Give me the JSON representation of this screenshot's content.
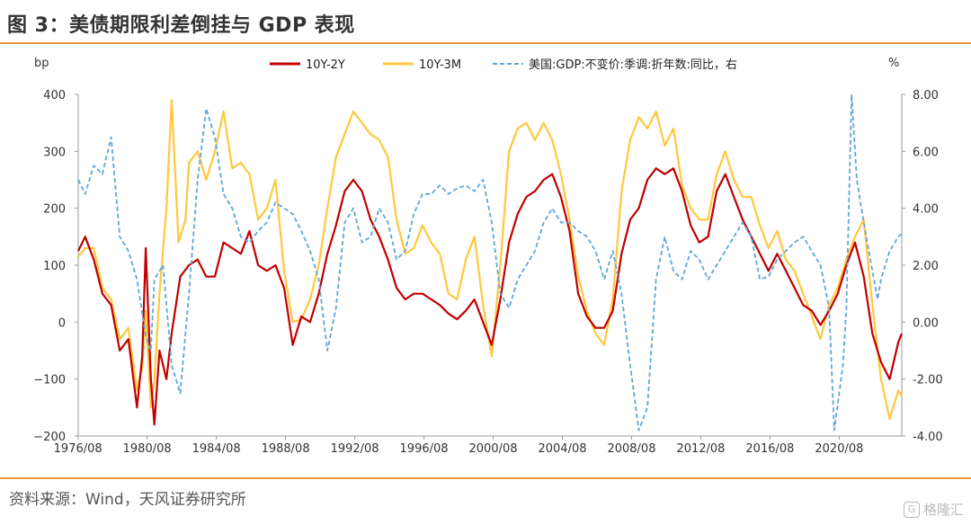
{
  "figure": {
    "title": "图 3：美债期限利差倒挂与 GDP 表现",
    "source": "资料来源：Wind，天风证券研究所",
    "watermark": "格隆汇"
  },
  "colors": {
    "accent_rule": "#e8963a",
    "series_10y2y": "#c00000",
    "series_10y3m": "#ffc83d",
    "series_gdp": "#5ea7d8"
  },
  "chart_data": {
    "type": "line",
    "left_unit": "bp",
    "right_unit": "%",
    "left_ylim": [
      -200,
      400
    ],
    "right_ylim": [
      -4,
      8
    ],
    "left_ticks": [
      "400",
      "300",
      "200",
      "100",
      "0",
      "−100",
      "−200"
    ],
    "right_ticks": [
      "8.00",
      "6.00",
      "4.00",
      "2.00",
      "0.00",
      "-2.00",
      "-4.00"
    ],
    "x_ticks": [
      "1976/08",
      "1980/08",
      "1984/08",
      "1988/08",
      "1992/08",
      "1996/08",
      "2000/08",
      "2004/08",
      "2008/08",
      "2012/08",
      "2016/08",
      "2020/08"
    ],
    "x_range": [
      1976.6,
      2024.2
    ],
    "grid": false,
    "legend_position": "top",
    "series": [
      {
        "name": "10Y-2Y",
        "axis": "left",
        "style": "solid",
        "points": [
          [
            1976.6,
            125
          ],
          [
            1977.0,
            150
          ],
          [
            1977.5,
            110
          ],
          [
            1978.0,
            50
          ],
          [
            1978.5,
            30
          ],
          [
            1979.0,
            -50
          ],
          [
            1979.5,
            -30
          ],
          [
            1980.0,
            -150
          ],
          [
            1980.3,
            -60
          ],
          [
            1980.5,
            130
          ],
          [
            1980.8,
            -100
          ],
          [
            1981.0,
            -180
          ],
          [
            1981.3,
            -50
          ],
          [
            1981.7,
            -100
          ],
          [
            1982.0,
            -20
          ],
          [
            1982.5,
            80
          ],
          [
            1983.0,
            100
          ],
          [
            1983.5,
            110
          ],
          [
            1984.0,
            80
          ],
          [
            1984.5,
            80
          ],
          [
            1985.0,
            140
          ],
          [
            1985.5,
            130
          ],
          [
            1986.0,
            120
          ],
          [
            1986.5,
            160
          ],
          [
            1987.0,
            100
          ],
          [
            1987.5,
            90
          ],
          [
            1988.0,
            100
          ],
          [
            1988.5,
            60
          ],
          [
            1989.0,
            -40
          ],
          [
            1989.5,
            10
          ],
          [
            1990.0,
            0
          ],
          [
            1990.5,
            50
          ],
          [
            1991.0,
            120
          ],
          [
            1991.5,
            170
          ],
          [
            1992.0,
            230
          ],
          [
            1992.5,
            250
          ],
          [
            1993.0,
            230
          ],
          [
            1993.5,
            180
          ],
          [
            1994.0,
            150
          ],
          [
            1994.5,
            110
          ],
          [
            1995.0,
            60
          ],
          [
            1995.5,
            40
          ],
          [
            1996.0,
            50
          ],
          [
            1996.5,
            50
          ],
          [
            1997.0,
            40
          ],
          [
            1997.5,
            30
          ],
          [
            1998.0,
            15
          ],
          [
            1998.5,
            5
          ],
          [
            1999.0,
            20
          ],
          [
            1999.5,
            40
          ],
          [
            2000.0,
            0
          ],
          [
            2000.5,
            -40
          ],
          [
            2001.0,
            40
          ],
          [
            2001.5,
            140
          ],
          [
            2002.0,
            190
          ],
          [
            2002.5,
            220
          ],
          [
            2003.0,
            230
          ],
          [
            2003.5,
            250
          ],
          [
            2004.0,
            260
          ],
          [
            2004.5,
            220
          ],
          [
            2005.0,
            160
          ],
          [
            2005.5,
            50
          ],
          [
            2006.0,
            10
          ],
          [
            2006.5,
            -10
          ],
          [
            2007.0,
            -10
          ],
          [
            2007.5,
            20
          ],
          [
            2008.0,
            120
          ],
          [
            2008.5,
            180
          ],
          [
            2009.0,
            200
          ],
          [
            2009.5,
            250
          ],
          [
            2010.0,
            270
          ],
          [
            2010.5,
            260
          ],
          [
            2011.0,
            270
          ],
          [
            2011.5,
            230
          ],
          [
            2012.0,
            170
          ],
          [
            2012.5,
            140
          ],
          [
            2013.0,
            150
          ],
          [
            2013.5,
            230
          ],
          [
            2014.0,
            260
          ],
          [
            2014.5,
            220
          ],
          [
            2015.0,
            180
          ],
          [
            2015.5,
            150
          ],
          [
            2016.0,
            120
          ],
          [
            2016.5,
            90
          ],
          [
            2017.0,
            120
          ],
          [
            2017.5,
            90
          ],
          [
            2018.0,
            60
          ],
          [
            2018.5,
            30
          ],
          [
            2019.0,
            20
          ],
          [
            2019.5,
            -5
          ],
          [
            2020.0,
            20
          ],
          [
            2020.5,
            50
          ],
          [
            2021.0,
            100
          ],
          [
            2021.5,
            140
          ],
          [
            2022.0,
            80
          ],
          [
            2022.5,
            -20
          ],
          [
            2023.0,
            -70
          ],
          [
            2023.5,
            -100
          ],
          [
            2024.0,
            -35
          ],
          [
            2024.2,
            -20
          ]
        ]
      },
      {
        "name": "10Y-3M",
        "axis": "left",
        "style": "solid",
        "points": [
          [
            1976.6,
            115
          ],
          [
            1977.0,
            130
          ],
          [
            1977.5,
            130
          ],
          [
            1978.0,
            60
          ],
          [
            1978.5,
            40
          ],
          [
            1979.0,
            -30
          ],
          [
            1979.5,
            -10
          ],
          [
            1980.0,
            -120
          ],
          [
            1980.3,
            -80
          ],
          [
            1980.5,
            20
          ],
          [
            1980.8,
            -150
          ],
          [
            1981.0,
            -100
          ],
          [
            1981.3,
            50
          ],
          [
            1981.7,
            200
          ],
          [
            1982.0,
            390
          ],
          [
            1982.4,
            140
          ],
          [
            1982.8,
            180
          ],
          [
            1983.0,
            280
          ],
          [
            1983.5,
            300
          ],
          [
            1984.0,
            250
          ],
          [
            1984.5,
            300
          ],
          [
            1985.0,
            370
          ],
          [
            1985.5,
            270
          ],
          [
            1986.0,
            280
          ],
          [
            1986.5,
            260
          ],
          [
            1987.0,
            180
          ],
          [
            1987.5,
            200
          ],
          [
            1988.0,
            250
          ],
          [
            1988.5,
            90
          ],
          [
            1989.0,
            0
          ],
          [
            1989.5,
            5
          ],
          [
            1990.0,
            40
          ],
          [
            1990.5,
            100
          ],
          [
            1991.0,
            200
          ],
          [
            1991.5,
            290
          ],
          [
            1992.0,
            330
          ],
          [
            1992.5,
            370
          ],
          [
            1993.0,
            350
          ],
          [
            1993.5,
            330
          ],
          [
            1994.0,
            320
          ],
          [
            1994.5,
            290
          ],
          [
            1995.0,
            180
          ],
          [
            1995.5,
            120
          ],
          [
            1996.0,
            130
          ],
          [
            1996.5,
            170
          ],
          [
            1997.0,
            140
          ],
          [
            1997.5,
            120
          ],
          [
            1998.0,
            50
          ],
          [
            1998.5,
            40
          ],
          [
            1999.0,
            110
          ],
          [
            1999.5,
            150
          ],
          [
            2000.0,
            30
          ],
          [
            2000.5,
            -60
          ],
          [
            2001.0,
            100
          ],
          [
            2001.5,
            300
          ],
          [
            2002.0,
            340
          ],
          [
            2002.5,
            350
          ],
          [
            2003.0,
            320
          ],
          [
            2003.5,
            350
          ],
          [
            2004.0,
            320
          ],
          [
            2004.5,
            260
          ],
          [
            2005.0,
            180
          ],
          [
            2005.5,
            80
          ],
          [
            2006.0,
            20
          ],
          [
            2006.5,
            -20
          ],
          [
            2007.0,
            -40
          ],
          [
            2007.5,
            40
          ],
          [
            2008.0,
            230
          ],
          [
            2008.5,
            320
          ],
          [
            2009.0,
            360
          ],
          [
            2009.5,
            340
          ],
          [
            2010.0,
            370
          ],
          [
            2010.5,
            310
          ],
          [
            2011.0,
            340
          ],
          [
            2011.5,
            240
          ],
          [
            2012.0,
            200
          ],
          [
            2012.5,
            180
          ],
          [
            2013.0,
            180
          ],
          [
            2013.5,
            260
          ],
          [
            2014.0,
            300
          ],
          [
            2014.5,
            250
          ],
          [
            2015.0,
            220
          ],
          [
            2015.5,
            220
          ],
          [
            2016.0,
            170
          ],
          [
            2016.5,
            130
          ],
          [
            2017.0,
            160
          ],
          [
            2017.5,
            110
          ],
          [
            2018.0,
            90
          ],
          [
            2018.5,
            50
          ],
          [
            2019.0,
            10
          ],
          [
            2019.5,
            -30
          ],
          [
            2020.0,
            30
          ],
          [
            2020.5,
            60
          ],
          [
            2021.0,
            110
          ],
          [
            2021.5,
            150
          ],
          [
            2022.0,
            180
          ],
          [
            2022.5,
            30
          ],
          [
            2023.0,
            -100
          ],
          [
            2023.5,
            -170
          ],
          [
            2024.0,
            -120
          ],
          [
            2024.2,
            -130
          ]
        ]
      },
      {
        "name": "美国:GDP:不变价:季调:折年数:同比，右",
        "axis": "right",
        "style": "dashed",
        "points": [
          [
            1976.6,
            5.0
          ],
          [
            1977.0,
            4.5
          ],
          [
            1977.5,
            5.5
          ],
          [
            1978.0,
            5.2
          ],
          [
            1978.5,
            6.5
          ],
          [
            1979.0,
            3.0
          ],
          [
            1979.5,
            2.5
          ],
          [
            1980.0,
            1.5
          ],
          [
            1980.5,
            -0.5
          ],
          [
            1980.8,
            -1.0
          ],
          [
            1981.0,
            1.5
          ],
          [
            1981.5,
            2.0
          ],
          [
            1982.0,
            -1.5
          ],
          [
            1982.5,
            -2.5
          ],
          [
            1983.0,
            1.0
          ],
          [
            1983.5,
            5.0
          ],
          [
            1984.0,
            7.5
          ],
          [
            1984.5,
            6.5
          ],
          [
            1985.0,
            4.5
          ],
          [
            1985.5,
            4.0
          ],
          [
            1986.0,
            3.0
          ],
          [
            1986.5,
            2.8
          ],
          [
            1987.0,
            3.2
          ],
          [
            1987.5,
            3.5
          ],
          [
            1988.0,
            4.2
          ],
          [
            1988.5,
            4.0
          ],
          [
            1989.0,
            3.8
          ],
          [
            1989.5,
            3.2
          ],
          [
            1990.0,
            2.5
          ],
          [
            1990.5,
            1.5
          ],
          [
            1991.0,
            -1.0
          ],
          [
            1991.5,
            0.5
          ],
          [
            1992.0,
            3.5
          ],
          [
            1992.5,
            4.0
          ],
          [
            1993.0,
            2.8
          ],
          [
            1993.5,
            3.0
          ],
          [
            1994.0,
            4.0
          ],
          [
            1994.5,
            3.5
          ],
          [
            1995.0,
            2.2
          ],
          [
            1995.5,
            2.5
          ],
          [
            1996.0,
            3.8
          ],
          [
            1996.5,
            4.5
          ],
          [
            1997.0,
            4.5
          ],
          [
            1997.5,
            4.8
          ],
          [
            1998.0,
            4.5
          ],
          [
            1998.5,
            4.7
          ],
          [
            1999.0,
            4.8
          ],
          [
            1999.5,
            4.6
          ],
          [
            2000.0,
            5.0
          ],
          [
            2000.5,
            3.5
          ],
          [
            2001.0,
            1.0
          ],
          [
            2001.5,
            0.5
          ],
          [
            2002.0,
            1.5
          ],
          [
            2002.5,
            2.0
          ],
          [
            2003.0,
            2.5
          ],
          [
            2003.5,
            3.5
          ],
          [
            2004.0,
            4.0
          ],
          [
            2004.5,
            3.5
          ],
          [
            2005.0,
            3.5
          ],
          [
            2005.5,
            3.2
          ],
          [
            2006.0,
            3.0
          ],
          [
            2006.5,
            2.5
          ],
          [
            2007.0,
            1.5
          ],
          [
            2007.5,
            2.5
          ],
          [
            2008.0,
            1.0
          ],
          [
            2008.5,
            -1.5
          ],
          [
            2009.0,
            -3.8
          ],
          [
            2009.5,
            -3.0
          ],
          [
            2010.0,
            1.5
          ],
          [
            2010.5,
            3.0
          ],
          [
            2011.0,
            1.8
          ],
          [
            2011.5,
            1.5
          ],
          [
            2012.0,
            2.5
          ],
          [
            2012.5,
            2.2
          ],
          [
            2013.0,
            1.5
          ],
          [
            2013.5,
            2.0
          ],
          [
            2014.0,
            2.5
          ],
          [
            2014.5,
            3.0
          ],
          [
            2015.0,
            3.5
          ],
          [
            2015.5,
            3.0
          ],
          [
            2016.0,
            1.5
          ],
          [
            2016.5,
            1.6
          ],
          [
            2017.0,
            2.2
          ],
          [
            2017.5,
            2.5
          ],
          [
            2018.0,
            2.8
          ],
          [
            2018.5,
            3.0
          ],
          [
            2019.0,
            2.5
          ],
          [
            2019.5,
            2.0
          ],
          [
            2020.0,
            0.5
          ],
          [
            2020.3,
            -3.8
          ],
          [
            2020.8,
            -1.5
          ],
          [
            2021.0,
            0.5
          ],
          [
            2021.3,
            8.0
          ],
          [
            2021.6,
            5.0
          ],
          [
            2022.0,
            3.5
          ],
          [
            2022.5,
            1.8
          ],
          [
            2022.8,
            0.8
          ],
          [
            2023.0,
            1.5
          ],
          [
            2023.5,
            2.5
          ],
          [
            2024.0,
            3.0
          ],
          [
            2024.2,
            3.1
          ]
        ]
      }
    ]
  }
}
